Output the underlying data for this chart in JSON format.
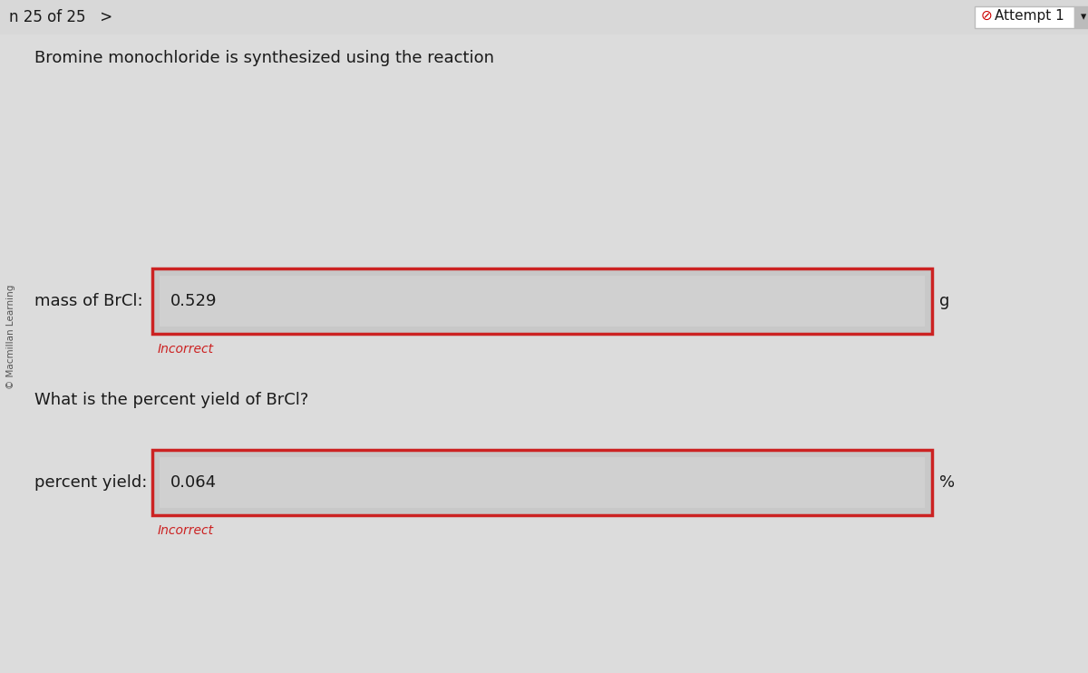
{
  "bg_color": "#dcdcdc",
  "page_nav": "n 25 of 25   >",
  "attempt_label": "Attempt 1",
  "attempt_icon_color": "#cc0000",
  "sidebar_text": "© Macmillan Learning",
  "title_line": "Bromine monochloride is synthesized using the reaction",
  "label1": "mass of BrCl:",
  "value1": "0.529",
  "unit1": "g",
  "feedback1": "Incorrect",
  "question2": "What is the percent yield of BrCl?",
  "label2": "percent yield:",
  "value2": "0.064",
  "unit2": "%",
  "feedback2": "Incorrect",
  "input_fill_color": "#c8c8c8",
  "inner_box_color": "#d0d0d0",
  "red_border_color": "#cc2222",
  "incorrect_color": "#cc2222",
  "text_color": "#1a1a1a",
  "nav_bg": "#d8d8d8",
  "white": "#ffffff"
}
